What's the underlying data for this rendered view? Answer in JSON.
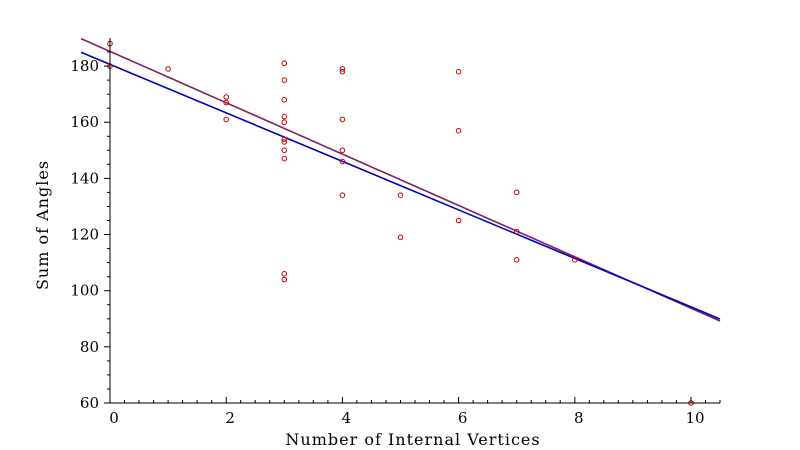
{
  "chart_data": {
    "type": "scatter",
    "title": "",
    "xlabel": "Number of Internal Vertices",
    "ylabel": "Sum of Angles",
    "xlim": [
      0,
      10.5
    ],
    "ylim": [
      60,
      190
    ],
    "x_ticks": [
      0,
      2,
      4,
      6,
      8,
      10
    ],
    "y_ticks": [
      60,
      80,
      100,
      120,
      140,
      160,
      180
    ],
    "grid": false,
    "legend": "none",
    "point_color": "#cc0000",
    "points": [
      {
        "x": 0,
        "y": 188
      },
      {
        "x": 0,
        "y": 180
      },
      {
        "x": 1,
        "y": 179
      },
      {
        "x": 2,
        "y": 169
      },
      {
        "x": 2,
        "y": 167
      },
      {
        "x": 2,
        "y": 161
      },
      {
        "x": 3,
        "y": 181
      },
      {
        "x": 3,
        "y": 175
      },
      {
        "x": 3,
        "y": 168
      },
      {
        "x": 3,
        "y": 162
      },
      {
        "x": 3,
        "y": 160
      },
      {
        "x": 3,
        "y": 154
      },
      {
        "x": 3,
        "y": 153
      },
      {
        "x": 3,
        "y": 150
      },
      {
        "x": 3,
        "y": 147
      },
      {
        "x": 3,
        "y": 106
      },
      {
        "x": 3,
        "y": 104
      },
      {
        "x": 4,
        "y": 179
      },
      {
        "x": 4,
        "y": 178
      },
      {
        "x": 4,
        "y": 161
      },
      {
        "x": 4,
        "y": 150
      },
      {
        "x": 4,
        "y": 146
      },
      {
        "x": 4,
        "y": 134
      },
      {
        "x": 5,
        "y": 134
      },
      {
        "x": 5,
        "y": 119
      },
      {
        "x": 6,
        "y": 178
      },
      {
        "x": 6,
        "y": 157
      },
      {
        "x": 6,
        "y": 125
      },
      {
        "x": 7,
        "y": 135
      },
      {
        "x": 7,
        "y": 121
      },
      {
        "x": 7,
        "y": 111
      },
      {
        "x": 8,
        "y": 111
      },
      {
        "x": 10,
        "y": 60
      }
    ],
    "lines": [
      {
        "color": "#7f2060",
        "x": [
          -0.5,
          10.5
        ],
        "y": [
          189.8,
          89.2
        ]
      },
      {
        "color": "#0000cc",
        "x": [
          -0.5,
          10.5
        ],
        "y": [
          184.9,
          89.9
        ]
      }
    ]
  }
}
